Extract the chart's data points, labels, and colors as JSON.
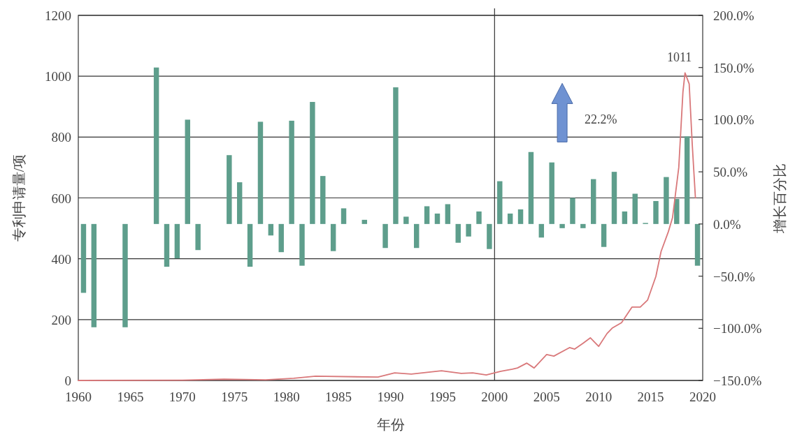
{
  "chart_data": {
    "type": "bar",
    "xlabel": "年份",
    "ylabel": "专利申请量/项",
    "y2label": "增长百分比",
    "xlim": [
      1960,
      2020
    ],
    "xticks": [
      1960,
      1965,
      1970,
      1975,
      1980,
      1985,
      1990,
      1995,
      2000,
      2005,
      2010,
      2015,
      2020
    ],
    "ylim": [
      0,
      1200
    ],
    "yticks": [
      0,
      200,
      400,
      600,
      800,
      1000,
      1200
    ],
    "y2lim": [
      -150,
      200
    ],
    "y2ticks": [
      {
        "value": -150,
        "label": "−150.0%"
      },
      {
        "value": -100,
        "label": "−100.0%"
      },
      {
        "value": -50,
        "label": "−50.0%"
      },
      {
        "value": 0,
        "label": "0.0%"
      },
      {
        "value": 50,
        "label": "50.0%"
      },
      {
        "value": 100,
        "label": "100.0%"
      },
      {
        "value": 150,
        "label": "150.0%"
      },
      {
        "value": 200,
        "label": "200.0%"
      }
    ],
    "grid": "y",
    "series": [
      {
        "axis": "y2",
        "color": "#5e9e8c",
        "x": [
          1960.5,
          1961.5,
          1964.5,
          1967.5,
          1968.5,
          1969.5,
          1970.5,
          1971.5,
          1974.5,
          1975.5,
          1976.5,
          1977.5,
          1978.5,
          1979.5,
          1980.5,
          1981.5,
          1982.5,
          1983.5,
          1984.5,
          1985.5,
          1987.5,
          1989.5,
          1990.5,
          1991.5,
          1992.5,
          1993.5,
          1994.5,
          1995.5,
          1996.5,
          1997.5,
          1998.5,
          1999.5,
          2000.5,
          2001.5,
          2002.5,
          2003.5,
          2004.5,
          2005.5,
          2006.5,
          2007.5,
          2008.5,
          2009.5,
          2010.5,
          2011.5,
          2012.5,
          2013.5,
          2014.5,
          2015.5,
          2016.5,
          2017.5,
          2018.5,
          2019.5
        ],
        "values": [
          -66,
          -99,
          -99,
          150,
          -41,
          -33,
          100,
          -25,
          66,
          40,
          -41,
          98,
          -11,
          -27,
          99,
          -40,
          117,
          46,
          -26,
          15,
          4,
          -23,
          131,
          7,
          -23,
          17,
          10,
          19,
          -18,
          -12,
          12,
          -24,
          41,
          10,
          14,
          69,
          -13,
          59,
          -4,
          25,
          -4,
          43,
          -22,
          50,
          12,
          29,
          1,
          22,
          45,
          24,
          84,
          -40
        ]
      },
      {
        "type": "line",
        "color": "#d9787a",
        "x": [
          1960,
          1970,
          1974,
          1976,
          1978,
          1980.7,
          1982.8,
          1988.8,
          1990.4,
          1992,
          1994.9,
          1996.8,
          1997.9,
          1999.2,
          2000.6,
          2001.7,
          2002.2,
          2003.1,
          2003.8,
          2005,
          2005.7,
          2007.2,
          2007.7,
          2008.5,
          2009.2,
          2010,
          2010.8,
          2011.3,
          2012.2,
          2013.2,
          2014,
          2014.7,
          2015.5,
          2016,
          2016.7,
          2017.1,
          2017.7,
          2018.1,
          2018.3,
          2018.7,
          2019,
          2019.3
        ],
        "values": [
          0,
          1,
          4,
          3,
          2,
          7,
          14,
          11,
          25,
          21,
          32,
          23,
          25,
          18,
          30,
          37,
          41,
          57,
          41,
          85,
          80,
          108,
          103,
          122,
          140,
          112,
          154,
          172,
          190,
          241,
          241,
          264,
          342,
          424,
          489,
          535,
          700,
          948,
          1011,
          975,
          773,
          600
        ]
      }
    ],
    "ref_lines": [
      {
        "axis": "x",
        "value": 2000,
        "color": "#333333"
      }
    ],
    "annotations": [
      {
        "text": "1011",
        "x": 2018.3,
        "y": 1011
      },
      "22.2%"
    ]
  }
}
